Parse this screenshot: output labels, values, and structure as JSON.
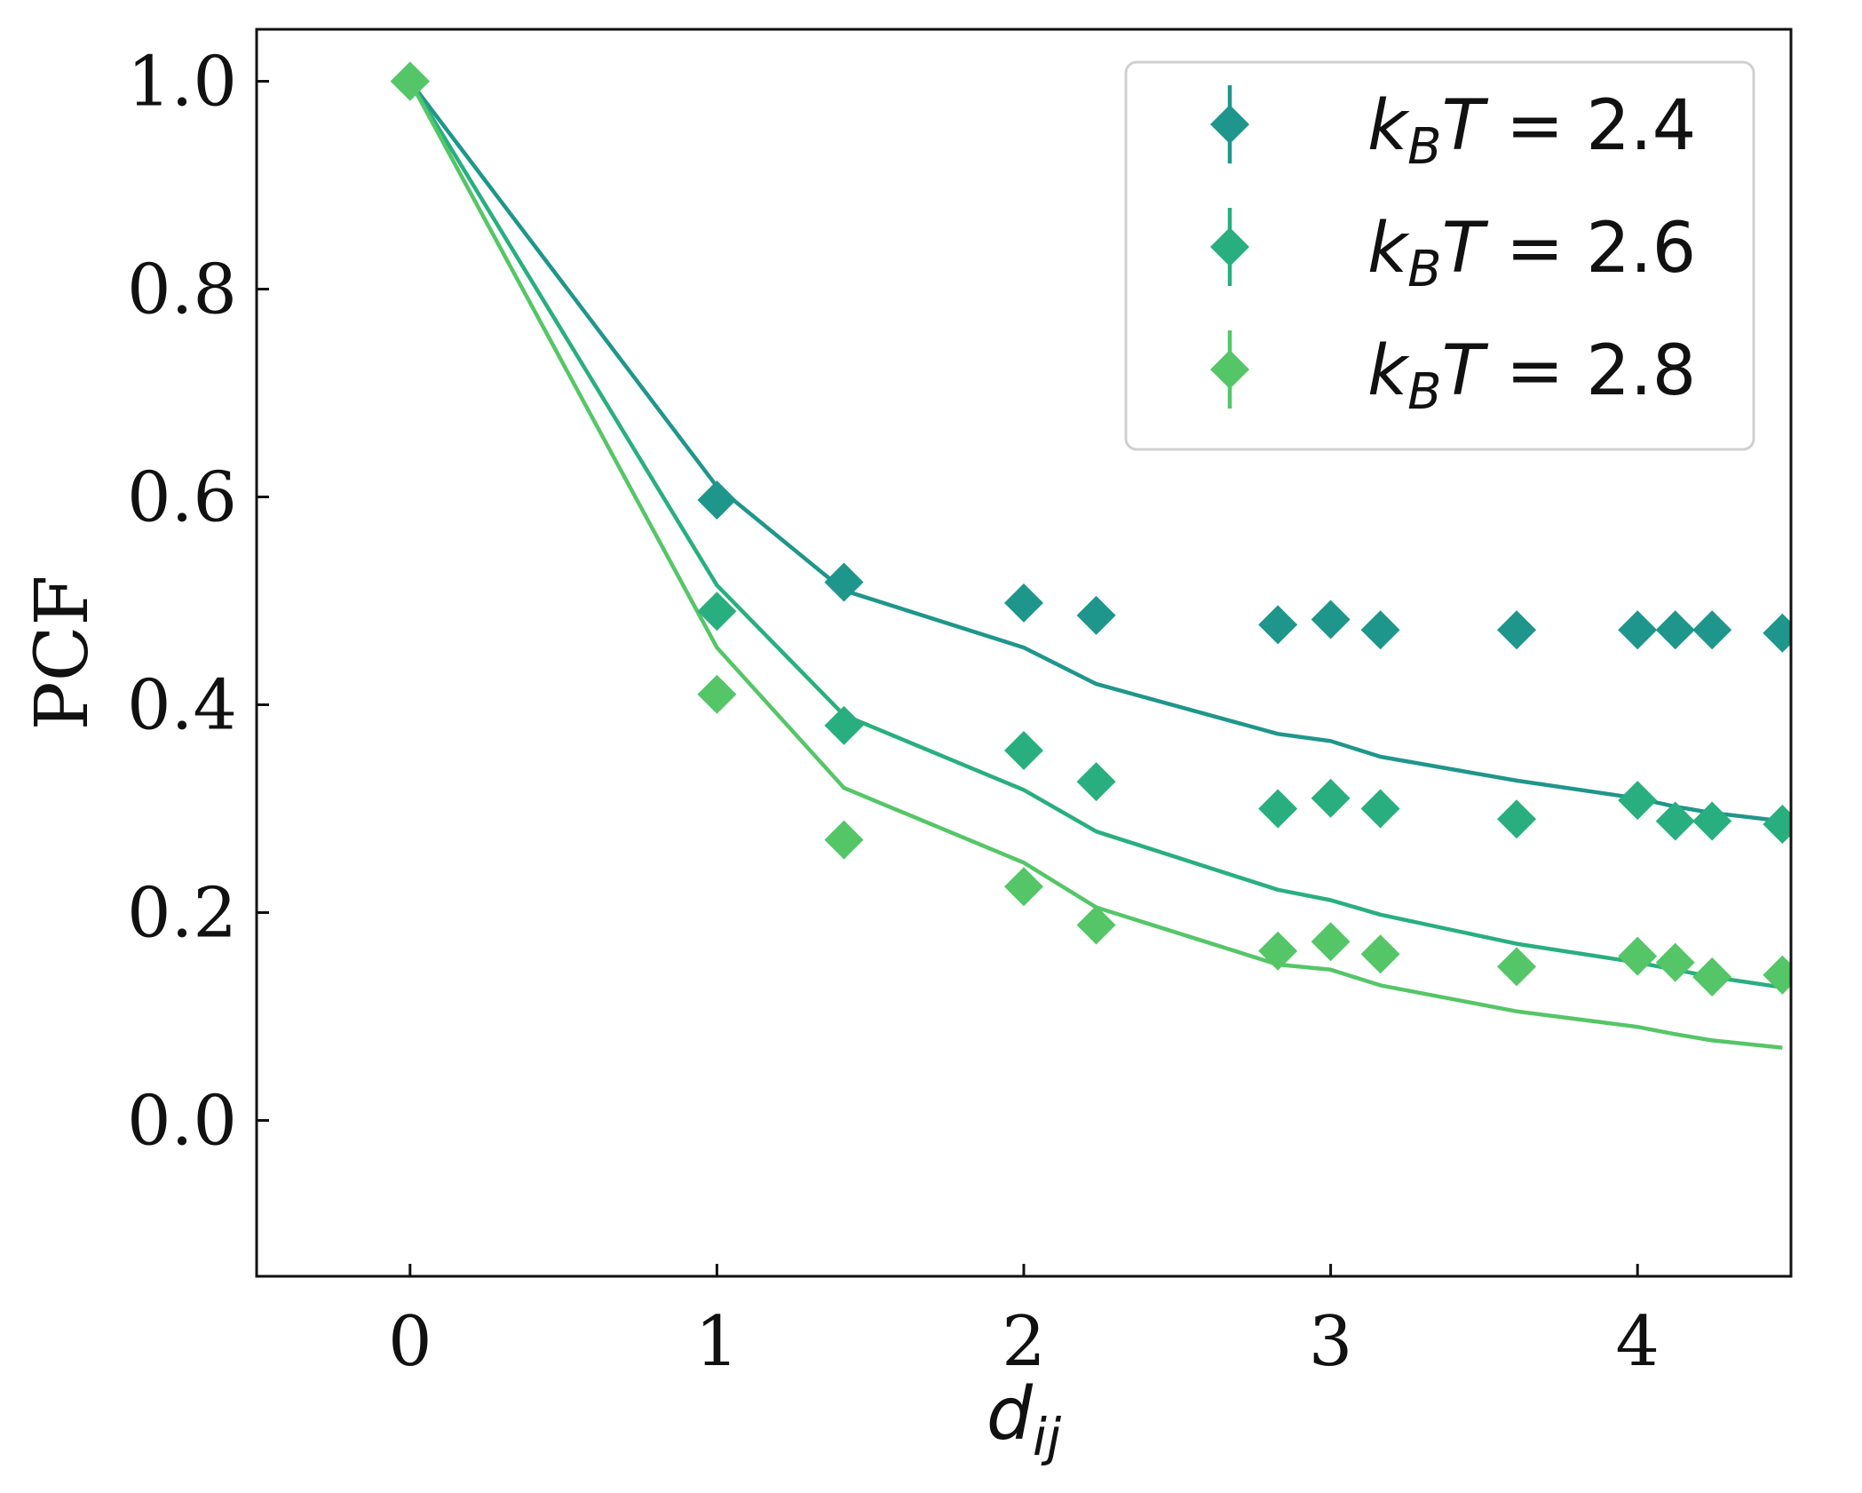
{
  "chart_data": {
    "type": "scatter",
    "title": "",
    "xlabel": {
      "base": "d",
      "sub": "ij"
    },
    "ylabel": "PCF",
    "xlim": [
      -0.5,
      4.5
    ],
    "ylim": [
      -0.15,
      1.05
    ],
    "xticks": [
      0,
      1,
      2,
      3,
      4
    ],
    "xtick_labels": [
      "0",
      "1",
      "2",
      "3",
      "4"
    ],
    "yticks": [
      0.0,
      0.2,
      0.4,
      0.6,
      0.8,
      1.0
    ],
    "ytick_labels": [
      "0.0",
      "0.2",
      "0.4",
      "0.6",
      "0.8",
      "1.0"
    ],
    "grid": false,
    "legend_position": "top-right",
    "x": [
      0,
      1,
      1.414,
      2,
      2.236,
      2.828,
      3,
      3.162,
      3.606,
      4,
      4.123,
      4.243,
      4.472
    ],
    "series": [
      {
        "name": "k_B T = 2.4",
        "legend": {
          "k": "k",
          "sub": "B",
          "T": "T",
          "eq": " = ",
          "value": "2.4"
        },
        "color": "#1f968b",
        "points": [
          1.0,
          0.597,
          0.518,
          0.498,
          0.486,
          0.477,
          0.482,
          0.472,
          0.472,
          0.472,
          0.472,
          0.472,
          0.469
        ],
        "fit": [
          1.0,
          0.61,
          0.51,
          0.455,
          0.42,
          0.372,
          0.365,
          0.35,
          0.327,
          0.31,
          0.302,
          0.296,
          0.288
        ]
      },
      {
        "name": "k_B T = 2.6",
        "legend": {
          "k": "k",
          "sub": "B",
          "T": "T",
          "eq": " = ",
          "value": "2.6"
        },
        "color": "#29af7f",
        "points": [
          1.0,
          0.49,
          0.38,
          0.356,
          0.326,
          0.3,
          0.31,
          0.3,
          0.29,
          0.308,
          0.288,
          0.288,
          0.285
        ],
        "fit": [
          1.0,
          0.515,
          0.39,
          0.318,
          0.278,
          0.222,
          0.212,
          0.198,
          0.17,
          0.152,
          0.145,
          0.138,
          0.128
        ]
      },
      {
        "name": "k_B T = 2.8",
        "legend": {
          "k": "k",
          "sub": "B",
          "T": "T",
          "eq": " = ",
          "value": "2.8"
        },
        "color": "#55c667",
        "points": [
          1.0,
          0.41,
          0.27,
          0.225,
          0.188,
          0.163,
          0.172,
          0.16,
          0.148,
          0.158,
          0.152,
          0.138,
          0.14
        ],
        "fit": [
          1.0,
          0.455,
          0.32,
          0.248,
          0.205,
          0.15,
          0.145,
          0.13,
          0.105,
          0.09,
          0.083,
          0.077,
          0.07
        ]
      }
    ]
  }
}
